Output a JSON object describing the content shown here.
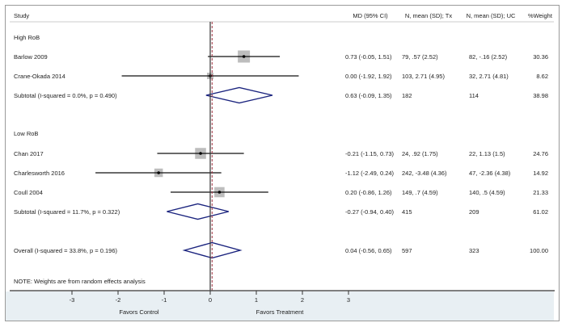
{
  "chart_data": {
    "type": "forest",
    "headers": {
      "study": "Study",
      "md": "MD (95% CI)",
      "tx": "N, mean (SD); Tx",
      "uc": "N, mean (SD); UC",
      "weight": "%Weight"
    },
    "xlim": [
      -3,
      3
    ],
    "ticks": [
      -3,
      -2,
      -1,
      0,
      1,
      2,
      3
    ],
    "tick_labels": [
      "-3",
      "-2",
      "-1",
      "0",
      "1",
      "2",
      "3"
    ],
    "favors_left": "Favors Control",
    "favors_right": "Favors Treatment",
    "overall_line_value": 0.04,
    "note": "NOTE: Weights are from random effects analysis",
    "rows": [
      {
        "kind": "group",
        "label": "High RoB"
      },
      {
        "kind": "study",
        "label": "Barlow 2009",
        "md": 0.73,
        "lo": -0.05,
        "hi": 1.51,
        "md_text": "0.73 (-0.05, 1.51)",
        "tx": "79, .57 (2.52)",
        "uc": "82, -.16 (2.52)",
        "weight": 30.36,
        "weight_text": "30.36"
      },
      {
        "kind": "study",
        "label": "Crane-Okada 2014",
        "md": 0.0,
        "lo": -1.92,
        "hi": 1.92,
        "md_text": "0.00 (-1.92, 1.92)",
        "tx": "103, 2.71 (4.95)",
        "uc": "32, 2.71 (4.81)",
        "weight": 8.62,
        "weight_text": "8.62"
      },
      {
        "kind": "subtotal",
        "label": "Subtotal  (I-squared = 0.0%, p = 0.490)",
        "md": 0.63,
        "lo": -0.09,
        "hi": 1.35,
        "md_text": "0.63 (-0.09, 1.35)",
        "tx": "182",
        "uc": "114",
        "weight": 38.98,
        "weight_text": "38.98"
      },
      {
        "kind": "blank"
      },
      {
        "kind": "group",
        "label": "Low RoB"
      },
      {
        "kind": "study",
        "label": "Chan 2017",
        "md": -0.21,
        "lo": -1.15,
        "hi": 0.73,
        "md_text": "-0.21 (-1.15, 0.73)",
        "tx": "24, .92 (1.75)",
        "uc": "22, 1.13 (1.5)",
        "weight": 24.76,
        "weight_text": "24.76"
      },
      {
        "kind": "study",
        "label": "Charlesworth 2016",
        "md": -1.12,
        "lo": -2.49,
        "hi": 0.24,
        "md_text": "-1.12 (-2.49, 0.24)",
        "tx": "242, -3.48 (4.36)",
        "uc": "47, -2.36 (4.38)",
        "weight": 14.92,
        "weight_text": "14.92"
      },
      {
        "kind": "study",
        "label": "Coull 2004",
        "md": 0.2,
        "lo": -0.86,
        "hi": 1.26,
        "md_text": "0.20 (-0.86, 1.26)",
        "tx": "149, .7 (4.59)",
        "uc": "140, .5 (4.59)",
        "weight": 21.33,
        "weight_text": "21.33"
      },
      {
        "kind": "subtotal",
        "label": "Subtotal  (I-squared = 11.7%, p = 0.322)",
        "md": -0.27,
        "lo": -0.94,
        "hi": 0.4,
        "md_text": "-0.27 (-0.94, 0.40)",
        "tx": "415",
        "uc": "209",
        "weight": 61.02,
        "weight_text": "61.02"
      },
      {
        "kind": "blank"
      },
      {
        "kind": "overall",
        "label": "Overall  (I-squared = 33.8%, p = 0.196)",
        "md": 0.04,
        "lo": -0.56,
        "hi": 0.65,
        "md_text": "0.04 (-0.56, 0.65)",
        "tx": "597",
        "uc": "323",
        "weight": 100.0,
        "weight_text": "100.00"
      }
    ],
    "colors": {
      "diamond": "#1a237e",
      "ci_line": "#111111",
      "box": "#bdbdbd",
      "null_line": "#333333",
      "overall_line": "#a03040",
      "axis_panel": "#e8eff3"
    }
  }
}
